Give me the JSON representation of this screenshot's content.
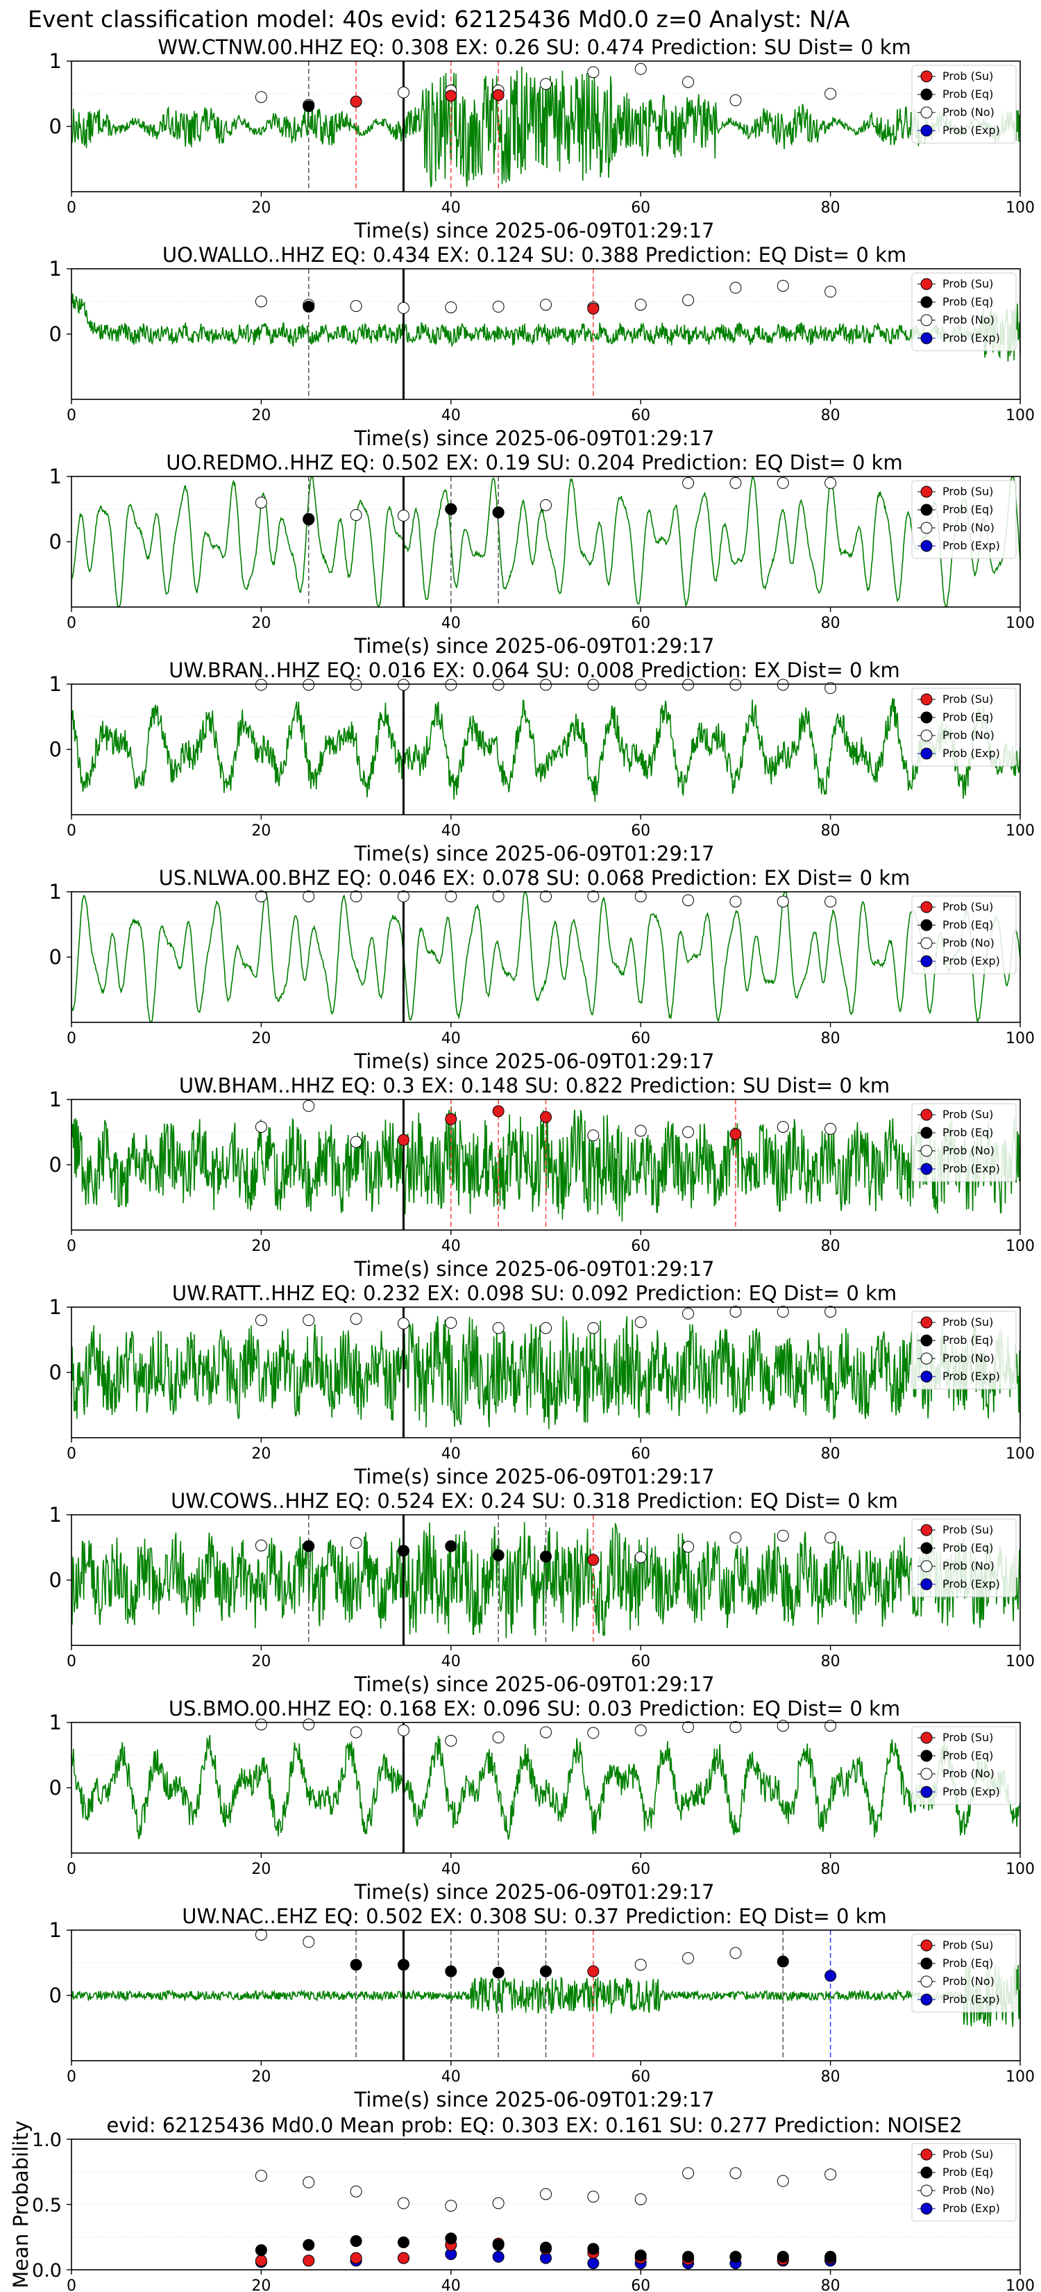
{
  "suptitle": "Event classification model: 40s evid: 62125436 Md0.0 z=0 Analyst: N/A",
  "xlabel": "Time(s) since 2025-06-09T01:29:17",
  "legend": [
    "Prob (Su)",
    "Prob (Eq)",
    "Prob (No)",
    "Prob (Exp)"
  ],
  "colors": {
    "waveform": "#008000",
    "su": "#e41a1c",
    "eq": "#000000",
    "no": "#ffffff",
    "exp": "#0000cc",
    "su_line": "#ff4444",
    "eq_line": "#555555",
    "exp_line": "#3333ff",
    "origin_line": "#000000"
  },
  "chart_data": [
    {
      "type": "line",
      "title": "WW.CTNW.00.HHZ   EQ: 0.308   EX: 0.26   SU: 0.474   Prediction: SU    Dist= 0 km",
      "xlim": [
        0,
        100
      ],
      "ylim": [
        -1,
        1
      ],
      "xticks": [
        "0",
        "20",
        "40",
        "60",
        "80",
        "100"
      ],
      "yticks": [
        "1",
        "0"
      ],
      "xlabel": "Time(s) since 2025-06-09T01:29:17",
      "waveform": "noisy-burst",
      "origin_time": 35,
      "eq_markers": [
        25
      ],
      "su_markers": [
        30,
        40,
        45
      ],
      "exp_markers": [],
      "prob_no": [
        [
          20,
          0.45
        ],
        [
          25,
          0.33
        ],
        [
          30,
          0.38
        ],
        [
          35,
          0.52
        ],
        [
          40,
          0.55
        ],
        [
          45,
          0.55
        ],
        [
          50,
          0.65
        ],
        [
          55,
          0.83
        ],
        [
          60,
          0.88
        ],
        [
          65,
          0.68
        ],
        [
          70,
          0.4
        ],
        [
          80,
          0.5
        ]
      ],
      "prob_eq": [
        [
          25,
          0.31
        ]
      ],
      "prob_su": [
        [
          30,
          0.38
        ],
        [
          40,
          0.47
        ],
        [
          45,
          0.48
        ]
      ],
      "prob_exp": []
    },
    {
      "type": "line",
      "title": "UO.WALLO..HHZ   EQ: 0.434   EX: 0.124   SU: 0.388   Prediction: EQ    Dist= 0 km",
      "xlim": [
        0,
        100
      ],
      "ylim": [
        -1,
        1
      ],
      "xticks": [
        "0",
        "20",
        "40",
        "60",
        "80",
        "100"
      ],
      "yticks": [
        "1",
        "0"
      ],
      "xlabel": "Time(s) since 2025-06-09T01:29:17",
      "waveform": "low-noise",
      "origin_time": 35,
      "eq_markers": [
        25
      ],
      "su_markers": [
        55
      ],
      "exp_markers": [],
      "prob_no": [
        [
          20,
          0.5
        ],
        [
          25,
          0.45
        ],
        [
          30,
          0.43
        ],
        [
          35,
          0.4
        ],
        [
          40,
          0.41
        ],
        [
          45,
          0.42
        ],
        [
          50,
          0.45
        ],
        [
          55,
          0.41
        ],
        [
          60,
          0.45
        ],
        [
          65,
          0.52
        ],
        [
          70,
          0.71
        ],
        [
          75,
          0.74
        ],
        [
          80,
          0.65
        ]
      ],
      "prob_eq": [
        [
          25,
          0.42
        ]
      ],
      "prob_su": [
        [
          55,
          0.39
        ]
      ],
      "prob_exp": []
    },
    {
      "type": "line",
      "title": "UO.REDMO..HHZ   EQ: 0.502   EX: 0.19   SU: 0.204   Prediction: EQ    Dist= 0 km",
      "xlim": [
        0,
        100
      ],
      "ylim": [
        -1,
        1
      ],
      "xticks": [
        "0",
        "20",
        "40",
        "60",
        "80",
        "100"
      ],
      "yticks": [
        "1",
        "0"
      ],
      "xlabel": "Time(s) since 2025-06-09T01:29:17",
      "waveform": "smooth-oscillation",
      "origin_time": 35,
      "eq_markers": [
        25,
        40,
        45
      ],
      "su_markers": [],
      "exp_markers": [],
      "prob_no": [
        [
          20,
          0.6
        ],
        [
          25,
          0.35
        ],
        [
          30,
          0.41
        ],
        [
          35,
          0.4
        ],
        [
          40,
          0.5
        ],
        [
          45,
          0.45
        ],
        [
          50,
          0.56
        ],
        [
          65,
          0.9
        ],
        [
          70,
          0.9
        ],
        [
          75,
          0.9
        ],
        [
          80,
          0.9
        ]
      ],
      "prob_eq": [
        [
          25,
          0.34
        ],
        [
          40,
          0.5
        ],
        [
          45,
          0.45
        ]
      ],
      "prob_su": [],
      "prob_exp": []
    },
    {
      "type": "line",
      "title": "UW.BRAN..HHZ   EQ: 0.016   EX: 0.064   SU: 0.008   Prediction: EX    Dist= 0 km",
      "xlim": [
        0,
        100
      ],
      "ylim": [
        -1,
        1
      ],
      "xticks": [
        "0",
        "20",
        "40",
        "60",
        "80",
        "100"
      ],
      "yticks": [
        "1",
        "0"
      ],
      "xlabel": "Time(s) since 2025-06-09T01:29:17",
      "waveform": "noisy-oscillation",
      "origin_time": 35,
      "eq_markers": [],
      "su_markers": [],
      "exp_markers": [],
      "prob_no": [
        [
          20,
          0.99
        ],
        [
          25,
          0.99
        ],
        [
          30,
          0.99
        ],
        [
          35,
          0.99
        ],
        [
          40,
          0.99
        ],
        [
          45,
          0.99
        ],
        [
          50,
          0.99
        ],
        [
          55,
          0.99
        ],
        [
          60,
          0.99
        ],
        [
          65,
          0.99
        ],
        [
          70,
          0.99
        ],
        [
          75,
          0.99
        ],
        [
          80,
          0.94
        ]
      ],
      "prob_eq": [],
      "prob_su": [],
      "prob_exp": []
    },
    {
      "type": "line",
      "title": "US.NLWA.00.BHZ   EQ: 0.046   EX: 0.078   SU: 0.068   Prediction: EX    Dist= 0 km",
      "xlim": [
        0,
        100
      ],
      "ylim": [
        -1,
        1
      ],
      "xticks": [
        "0",
        "20",
        "40",
        "60",
        "80",
        "100"
      ],
      "yticks": [
        "1",
        "0"
      ],
      "xlabel": "Time(s) since 2025-06-09T01:29:17",
      "waveform": "smooth-oscillation",
      "origin_time": 35,
      "eq_markers": [],
      "su_markers": [],
      "exp_markers": [],
      "prob_no": [
        [
          20,
          0.93
        ],
        [
          25,
          0.93
        ],
        [
          30,
          0.93
        ],
        [
          35,
          0.93
        ],
        [
          40,
          0.93
        ],
        [
          45,
          0.93
        ],
        [
          50,
          0.93
        ],
        [
          55,
          0.93
        ],
        [
          60,
          0.93
        ],
        [
          65,
          0.87
        ],
        [
          70,
          0.85
        ],
        [
          75,
          0.85
        ],
        [
          80,
          0.85
        ]
      ],
      "prob_eq": [],
      "prob_su": [],
      "prob_exp": []
    },
    {
      "type": "line",
      "title": "UW.BHAM..HHZ   EQ: 0.3   EX: 0.148   SU: 0.822   Prediction: SU    Dist= 0 km",
      "xlim": [
        0,
        100
      ],
      "ylim": [
        -1,
        1
      ],
      "xticks": [
        "0",
        "20",
        "40",
        "60",
        "80",
        "100"
      ],
      "yticks": [
        "1",
        "0"
      ],
      "xlabel": "Time(s) since 2025-06-09T01:29:17",
      "waveform": "dense-noise",
      "origin_time": 35,
      "eq_markers": [],
      "su_markers": [
        40,
        45,
        50,
        70
      ],
      "exp_markers": [],
      "prob_no": [
        [
          20,
          0.58
        ],
        [
          25,
          0.9
        ],
        [
          30,
          0.35
        ],
        [
          55,
          0.45
        ],
        [
          60,
          0.52
        ],
        [
          65,
          0.5
        ],
        [
          75,
          0.58
        ],
        [
          80,
          0.55
        ]
      ],
      "prob_eq": [],
      "prob_su": [
        [
          35,
          0.38
        ],
        [
          40,
          0.7
        ],
        [
          45,
          0.82
        ],
        [
          50,
          0.73
        ],
        [
          70,
          0.47
        ]
      ],
      "prob_exp": []
    },
    {
      "type": "line",
      "title": "UW.RATT..HHZ   EQ: 0.232   EX: 0.098   SU: 0.092   Prediction: EQ    Dist= 0 km",
      "xlim": [
        0,
        100
      ],
      "ylim": [
        -1,
        1
      ],
      "xticks": [
        "0",
        "20",
        "40",
        "60",
        "80",
        "100"
      ],
      "yticks": [
        "1",
        "0"
      ],
      "xlabel": "Time(s) since 2025-06-09T01:29:17",
      "waveform": "dense-noise",
      "origin_time": 35,
      "eq_markers": [],
      "su_markers": [],
      "exp_markers": [],
      "prob_no": [
        [
          20,
          0.8
        ],
        [
          25,
          0.8
        ],
        [
          30,
          0.82
        ],
        [
          35,
          0.75
        ],
        [
          40,
          0.76
        ],
        [
          45,
          0.68
        ],
        [
          50,
          0.68
        ],
        [
          55,
          0.68
        ],
        [
          60,
          0.77
        ],
        [
          65,
          0.9
        ],
        [
          70,
          0.93
        ],
        [
          75,
          0.93
        ],
        [
          80,
          0.93
        ]
      ],
      "prob_eq": [],
      "prob_su": [],
      "prob_exp": []
    },
    {
      "type": "line",
      "title": "UW.COWS..HHZ   EQ: 0.524   EX: 0.24   SU: 0.318   Prediction: EQ    Dist= 0 km",
      "xlim": [
        0,
        100
      ],
      "ylim": [
        -1,
        1
      ],
      "xticks": [
        "0",
        "20",
        "40",
        "60",
        "80",
        "100"
      ],
      "yticks": [
        "1",
        "0"
      ],
      "xlabel": "Time(s) since 2025-06-09T01:29:17",
      "waveform": "dense-noise",
      "origin_time": 35,
      "eq_markers": [
        25,
        45,
        50
      ],
      "su_markers": [
        55
      ],
      "exp_markers": [],
      "prob_no": [
        [
          20,
          0.53
        ],
        [
          30,
          0.57
        ],
        [
          60,
          0.35
        ],
        [
          65,
          0.51
        ],
        [
          70,
          0.65
        ],
        [
          75,
          0.68
        ],
        [
          80,
          0.65
        ]
      ],
      "prob_eq": [
        [
          25,
          0.52
        ],
        [
          35,
          0.45
        ],
        [
          40,
          0.52
        ],
        [
          45,
          0.38
        ],
        [
          50,
          0.36
        ]
      ],
      "prob_su": [
        [
          55,
          0.31
        ]
      ],
      "prob_exp": []
    },
    {
      "type": "line",
      "title": "US.BMO.00.HHZ   EQ: 0.168   EX: 0.096   SU: 0.03   Prediction: EQ    Dist= 0 km",
      "xlim": [
        0,
        100
      ],
      "ylim": [
        -1,
        1
      ],
      "xticks": [
        "0",
        "20",
        "40",
        "60",
        "80",
        "100"
      ],
      "yticks": [
        "1",
        "0"
      ],
      "xlabel": "Time(s) since 2025-06-09T01:29:17",
      "waveform": "noisy-oscillation",
      "origin_time": 35,
      "eq_markers": [],
      "su_markers": [],
      "exp_markers": [],
      "prob_no": [
        [
          20,
          0.97
        ],
        [
          25,
          0.97
        ],
        [
          30,
          0.85
        ],
        [
          35,
          0.88
        ],
        [
          40,
          0.72
        ],
        [
          45,
          0.77
        ],
        [
          50,
          0.85
        ],
        [
          55,
          0.84
        ],
        [
          60,
          0.88
        ],
        [
          65,
          0.93
        ],
        [
          70,
          0.93
        ],
        [
          75,
          0.95
        ],
        [
          80,
          0.95
        ]
      ],
      "prob_eq": [],
      "prob_su": [],
      "prob_exp": []
    },
    {
      "type": "line",
      "title": "UW.NAC..EHZ   EQ: 0.502   EX: 0.308   SU: 0.37   Prediction: EQ    Dist= 0 km",
      "xlim": [
        0,
        100
      ],
      "ylim": [
        -1,
        1
      ],
      "xticks": [
        "0",
        "20",
        "40",
        "60",
        "80",
        "100"
      ],
      "yticks": [
        "1",
        "0"
      ],
      "xlabel": "Time(s) since 2025-06-09T01:29:17",
      "waveform": "low-noise-burst",
      "origin_time": 35,
      "eq_markers": [
        30,
        40,
        45,
        50,
        75
      ],
      "su_markers": [
        55
      ],
      "exp_markers": [
        80
      ],
      "prob_no": [
        [
          20,
          0.93
        ],
        [
          25,
          0.82
        ],
        [
          60,
          0.47
        ],
        [
          65,
          0.57
        ],
        [
          70,
          0.65
        ]
      ],
      "prob_eq": [
        [
          30,
          0.47
        ],
        [
          35,
          0.47
        ],
        [
          40,
          0.37
        ],
        [
          45,
          0.35
        ],
        [
          50,
          0.37
        ],
        [
          75,
          0.52
        ]
      ],
      "prob_su": [
        [
          55,
          0.37
        ]
      ],
      "prob_exp": [
        [
          80,
          0.3
        ]
      ]
    },
    {
      "type": "scatter",
      "title": "evid: 62125436  Md0.0   Mean prob:   EQ: 0.303  EX: 0.161  SU: 0.277   Prediction: NOISE2",
      "ylabel": "Mean Probability",
      "xlim": [
        0,
        100
      ],
      "ylim": [
        0,
        1
      ],
      "xticks": [
        "0",
        "20",
        "40",
        "60",
        "80",
        "100"
      ],
      "yticks": [
        "0.0",
        "0.5",
        "1.0"
      ],
      "prob_no": [
        [
          20,
          0.72
        ],
        [
          25,
          0.67
        ],
        [
          30,
          0.6
        ],
        [
          35,
          0.51
        ],
        [
          40,
          0.49
        ],
        [
          45,
          0.51
        ],
        [
          50,
          0.58
        ],
        [
          55,
          0.56
        ],
        [
          60,
          0.54
        ],
        [
          65,
          0.74
        ],
        [
          70,
          0.74
        ],
        [
          75,
          0.68
        ],
        [
          80,
          0.73
        ]
      ],
      "prob_eq": [
        [
          20,
          0.15
        ],
        [
          25,
          0.19
        ],
        [
          30,
          0.22
        ],
        [
          35,
          0.21
        ],
        [
          40,
          0.24
        ],
        [
          45,
          0.19
        ],
        [
          50,
          0.17
        ],
        [
          55,
          0.16
        ],
        [
          60,
          0.11
        ],
        [
          65,
          0.1
        ],
        [
          70,
          0.1
        ],
        [
          75,
          0.1
        ],
        [
          80,
          0.1
        ]
      ],
      "prob_su": [
        [
          20,
          0.07
        ],
        [
          25,
          0.07
        ],
        [
          30,
          0.09
        ],
        [
          35,
          0.09
        ],
        [
          40,
          0.19
        ],
        [
          45,
          0.2
        ],
        [
          50,
          0.16
        ],
        [
          55,
          0.13
        ],
        [
          60,
          0.09
        ],
        [
          65,
          0.08
        ],
        [
          70,
          0.1
        ],
        [
          75,
          0.08
        ],
        [
          80,
          0.09
        ]
      ],
      "prob_exp": [
        [
          20,
          0.06
        ],
        [
          25,
          0.07
        ],
        [
          30,
          0.07
        ],
        [
          35,
          0.09
        ],
        [
          40,
          0.12
        ],
        [
          45,
          0.1
        ],
        [
          50,
          0.09
        ],
        [
          55,
          0.05
        ],
        [
          60,
          0.05
        ],
        [
          65,
          0.05
        ],
        [
          70,
          0.05
        ],
        [
          75,
          0.07
        ],
        [
          80,
          0.07
        ]
      ]
    }
  ]
}
